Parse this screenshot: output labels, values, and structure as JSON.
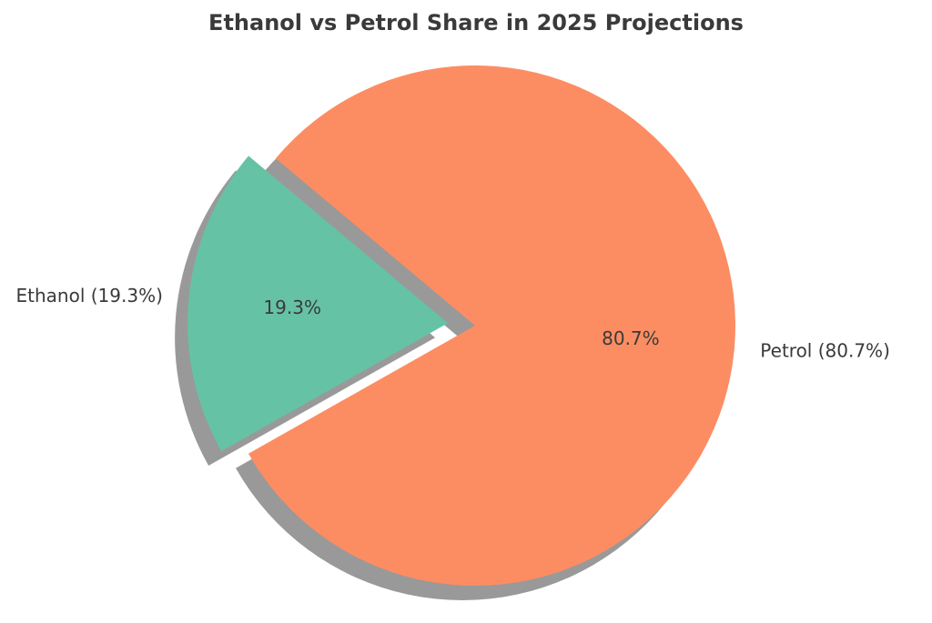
{
  "chart_data": {
    "type": "pie",
    "title": "Ethanol vs Petrol Share in 2025 Projections",
    "slices": [
      {
        "label": "Ethanol (19.3%)",
        "value": 19.3,
        "pct_text": "19.3%",
        "color": "#66c2a5",
        "exploded": true
      },
      {
        "label": "Petrol (80.7%)",
        "value": 80.7,
        "pct_text": "80.7%",
        "color": "#fc8d62",
        "exploded": false
      }
    ],
    "start_angle": 140,
    "counterclock": true,
    "shadow": true,
    "legend": "none"
  }
}
